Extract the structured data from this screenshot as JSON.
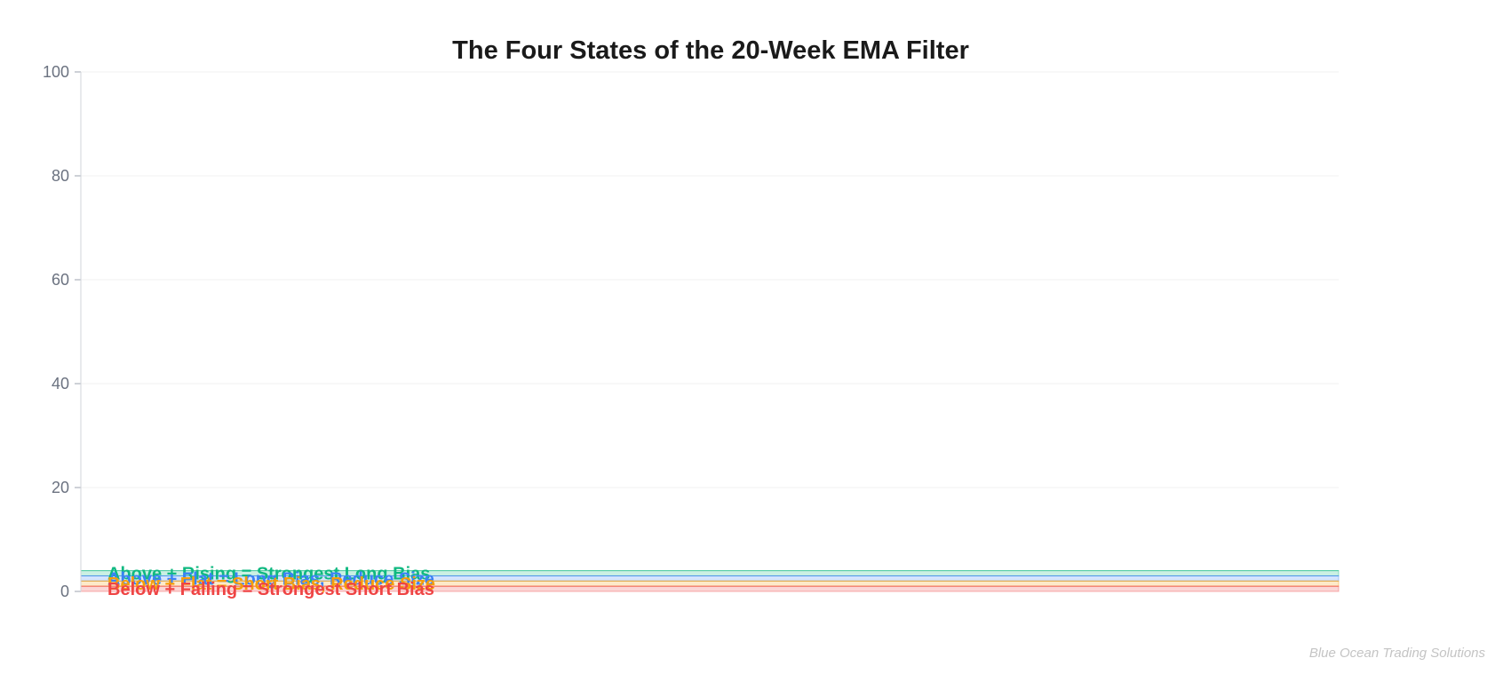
{
  "chart_data": {
    "type": "area",
    "title": "The Four States of the 20-Week EMA Filter",
    "xlabel": "",
    "ylabel": "",
    "ylim": [
      0,
      100
    ],
    "yticks": [
      0,
      20,
      40,
      60,
      80,
      100
    ],
    "grid": true,
    "series": [
      {
        "name": "Above + Rising = Strongest Long Bias",
        "y_range": [
          3,
          4
        ],
        "color": "#10b981"
      },
      {
        "name": "Above + Flat = Long Bias, Reduce Size",
        "y_range": [
          2,
          3
        ],
        "color": "#3b82f6"
      },
      {
        "name": "Below + Flat = Short Bias, Reduce Size",
        "y_range": [
          1,
          2
        ],
        "color": "#f59e0b"
      },
      {
        "name": "Below + Falling = Strongest Short Bias",
        "y_range": [
          0,
          1
        ],
        "color": "#ef4444"
      }
    ]
  },
  "watermark": "Blue Ocean Trading Solutions"
}
